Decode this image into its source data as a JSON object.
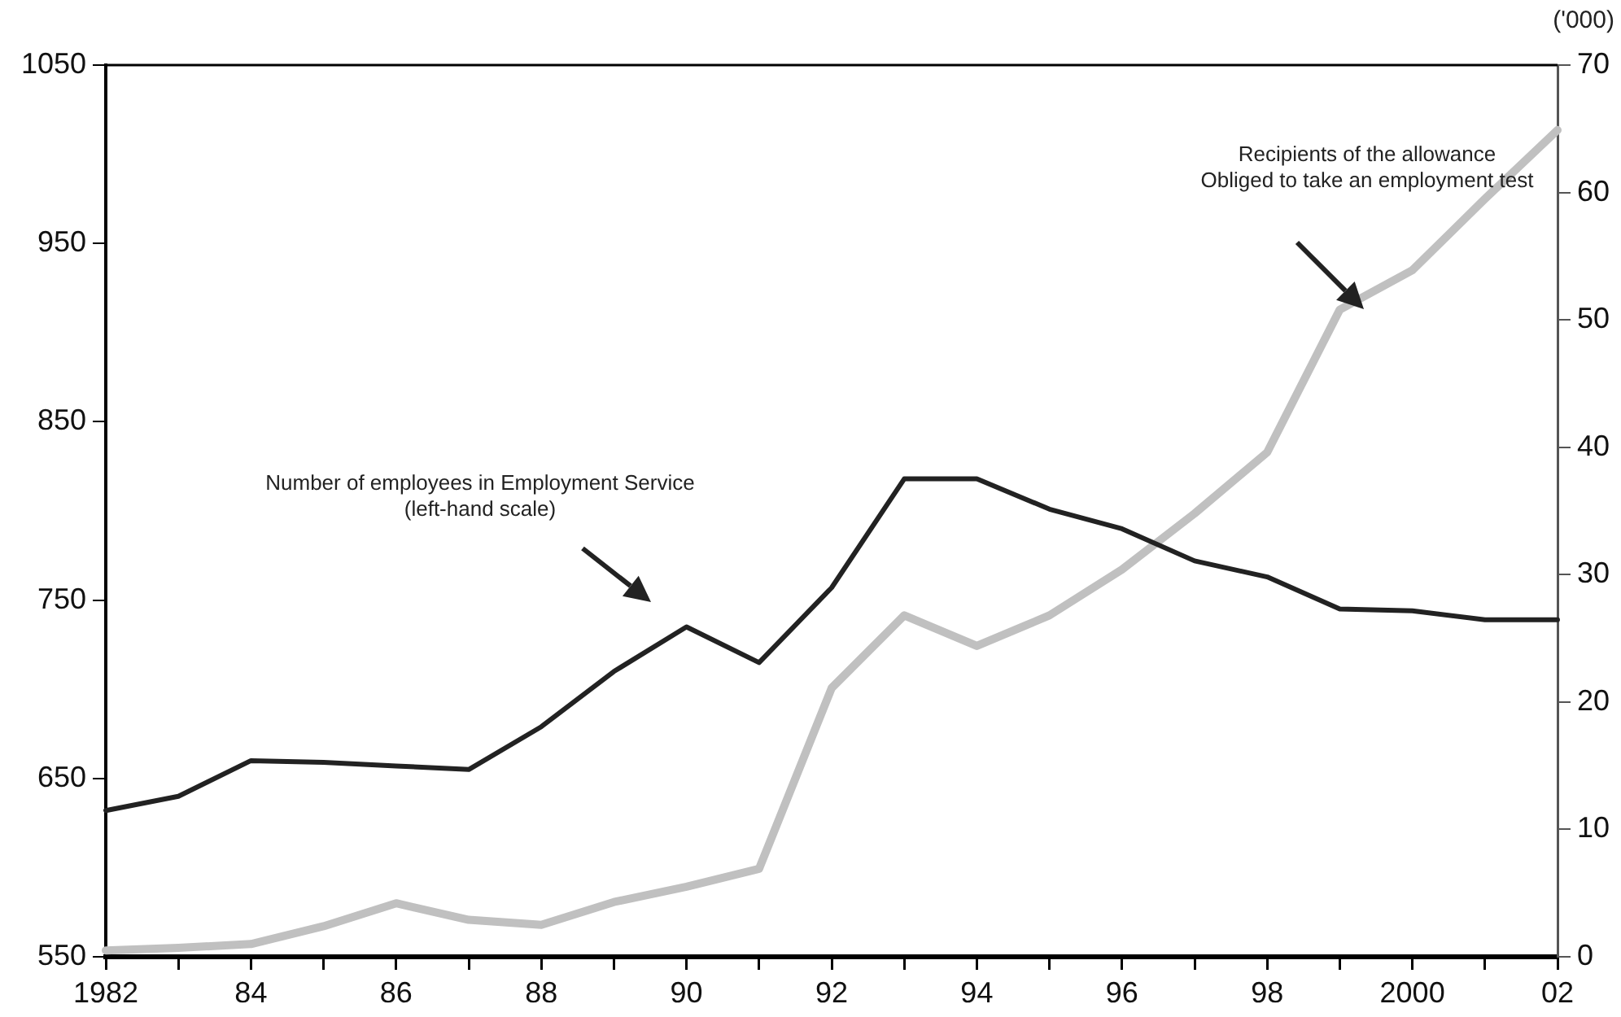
{
  "chart_data": {
    "type": "line",
    "y2label": "('000)",
    "categories": [
      "1982",
      null,
      "84",
      null,
      "86",
      null,
      "88",
      null,
      "90",
      null,
      "92",
      null,
      "94",
      null,
      "96",
      null,
      "98",
      null,
      "2000",
      null,
      "02"
    ],
    "series": [
      {
        "color": "#222222",
        "values": [
          632,
          640,
          660,
          659,
          657,
          655,
          679,
          710,
          735,
          715,
          757,
          818,
          818,
          801,
          790,
          772,
          763,
          745,
          744,
          739,
          739
        ]
      },
      {
        "color": "#c0c0c0",
        "axis": "y2",
        "values": [
          0.5,
          0.7,
          1.0,
          2.4,
          4.2,
          2.9,
          2.5,
          4.3,
          5.5,
          6.9,
          21.1,
          26.8,
          24.4,
          26.8,
          30.4,
          34.8,
          39.6,
          50.8,
          53.9,
          59.5,
          64.9
        ]
      }
    ],
    "ylim": [
      550,
      1050
    ],
    "yticks": [
      550,
      650,
      750,
      850,
      950,
      1050
    ],
    "y2lim": [
      0,
      70
    ],
    "y2ticks": [
      0,
      10,
      20,
      30,
      40,
      50,
      60,
      70
    ],
    "grid": false,
    "legend": false,
    "marker": "none",
    "line_style": "solid",
    "annotations": [
      "Number of employees in Employment Service\n(left-hand scale)",
      "Recipients of the allowance\nObliged to take an employment test"
    ]
  }
}
